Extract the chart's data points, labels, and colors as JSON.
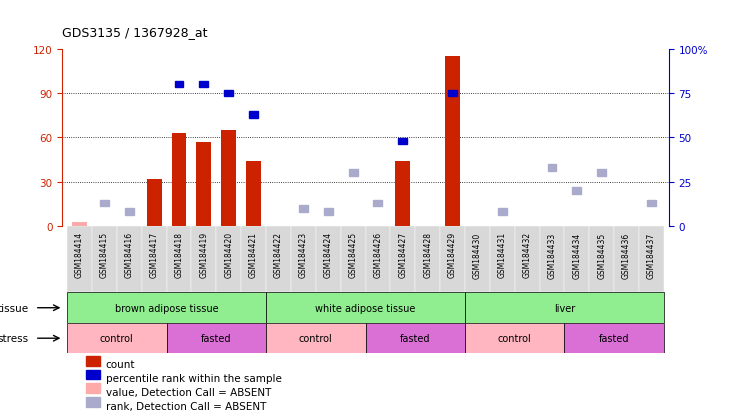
{
  "title": "GDS3135 / 1367928_at",
  "samples": [
    "GSM184414",
    "GSM184415",
    "GSM184416",
    "GSM184417",
    "GSM184418",
    "GSM184419",
    "GSM184420",
    "GSM184421",
    "GSM184422",
    "GSM184423",
    "GSM184424",
    "GSM184425",
    "GSM184426",
    "GSM184427",
    "GSM184428",
    "GSM184429",
    "GSM184430",
    "GSM184431",
    "GSM184432",
    "GSM184433",
    "GSM184434",
    "GSM184435",
    "GSM184436",
    "GSM184437"
  ],
  "count_values": [
    3,
    0,
    0,
    32,
    63,
    57,
    65,
    44,
    0,
    0,
    0,
    0,
    0,
    44,
    0,
    115,
    0,
    0,
    0,
    0,
    0,
    0,
    0,
    0
  ],
  "count_absent": [
    true,
    true,
    true,
    false,
    false,
    false,
    false,
    false,
    true,
    true,
    true,
    true,
    true,
    false,
    true,
    false,
    true,
    true,
    true,
    true,
    true,
    true,
    true,
    true
  ],
  "rank_values": [
    0,
    13,
    8,
    0,
    80,
    80,
    75,
    63,
    0,
    10,
    8,
    30,
    13,
    48,
    0,
    75,
    0,
    8,
    0,
    33,
    20,
    30,
    0,
    13
  ],
  "rank_absent": [
    true,
    true,
    true,
    false,
    false,
    false,
    false,
    false,
    true,
    true,
    true,
    true,
    true,
    false,
    true,
    false,
    true,
    true,
    true,
    true,
    true,
    true,
    true,
    true
  ],
  "tissue_groups": [
    {
      "label": "brown adipose tissue",
      "start": 0,
      "end": 7,
      "color": "#90EE90"
    },
    {
      "label": "white adipose tissue",
      "start": 8,
      "end": 15,
      "color": "#90EE90"
    },
    {
      "label": "liver",
      "start": 16,
      "end": 23,
      "color": "#90EE90"
    }
  ],
  "stress_groups": [
    {
      "label": "control",
      "start": 0,
      "end": 3,
      "color": "#FFB6C1"
    },
    {
      "label": "fasted",
      "start": 4,
      "end": 7,
      "color": "#DA70D6"
    },
    {
      "label": "control",
      "start": 8,
      "end": 11,
      "color": "#FFB6C1"
    },
    {
      "label": "fasted",
      "start": 12,
      "end": 15,
      "color": "#DA70D6"
    },
    {
      "label": "control",
      "start": 16,
      "end": 19,
      "color": "#FFB6C1"
    },
    {
      "label": "fasted",
      "start": 20,
      "end": 23,
      "color": "#DA70D6"
    }
  ],
  "left_ylim": [
    0,
    120
  ],
  "right_ylim": [
    0,
    100
  ],
  "left_yticks": [
    0,
    30,
    60,
    90,
    120
  ],
  "right_yticks": [
    0,
    25,
    50,
    75,
    100
  ],
  "right_yticklabels": [
    "0",
    "25",
    "50",
    "75",
    "100%"
  ],
  "grid_values": [
    30,
    60,
    90
  ],
  "bar_color_present": "#CC2200",
  "bar_color_absent": "#FFAAAA",
  "rank_color_present": "#0000CC",
  "rank_color_absent": "#AAAACC",
  "bg_color": "#FFFFFF",
  "cell_bg_color": "#D8D8D8",
  "left_axis_color": "#CC2200",
  "right_axis_color": "#0000CC"
}
